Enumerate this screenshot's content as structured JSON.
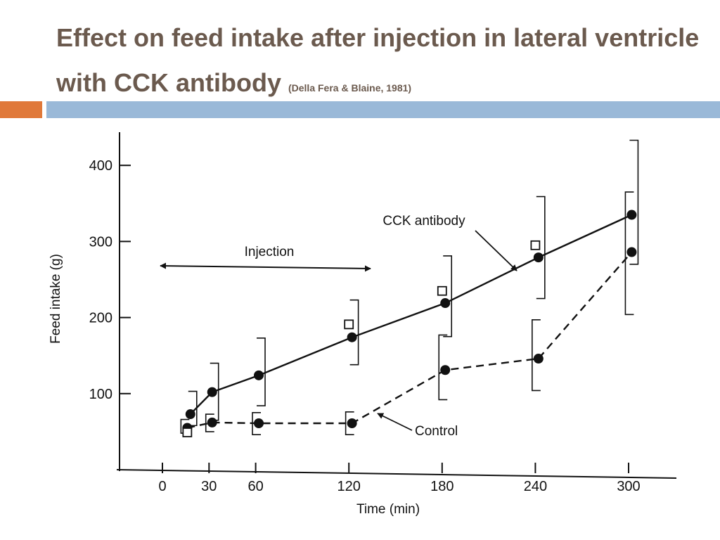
{
  "slide": {
    "title": "Effect on feed intake after injection in lateral ventricle with CCK antibody",
    "citation": "(Della Fera & Blaine, 1981)"
  },
  "colors": {
    "title": "#6b5a4e",
    "accent_orange": "#e0793a",
    "accent_blue": "#9ab9d8",
    "ink": "#111111"
  },
  "chart_data": {
    "type": "line",
    "title": "",
    "xlabel": "Time (min)",
    "ylabel": "Feed intake (g)",
    "x_ticks": [
      0,
      30,
      60,
      120,
      180,
      240,
      300
    ],
    "y_ticks": [
      100,
      200,
      300,
      400
    ],
    "xlim": [
      -20,
      330
    ],
    "ylim": [
      0,
      440
    ],
    "series": [
      {
        "name": "CCK antibody",
        "style": "solid",
        "x": [
          18,
          32,
          62,
          122,
          182,
          242,
          302
        ],
        "y": [
          73,
          102,
          124,
          174,
          219,
          279,
          335
        ],
        "err_low": [
          58,
          65,
          84,
          138,
          175,
          225,
          270
        ],
        "err_high": [
          103,
          140,
          173,
          223,
          281,
          359,
          433
        ]
      },
      {
        "name": "Control",
        "style": "dashed",
        "x": [
          16,
          32,
          62,
          122,
          182,
          242,
          302
        ],
        "y": [
          55,
          62,
          61,
          61,
          131,
          146,
          286
        ],
        "err_low": [
          48,
          50,
          46,
          46,
          92,
          104,
          204
        ],
        "err_high": [
          66,
          73,
          75,
          76,
          177,
          197,
          365
        ]
      }
    ],
    "open_markers": {
      "x": [
        16,
        120,
        180,
        240
      ],
      "y": [
        49,
        191,
        235,
        295
      ]
    },
    "annotations": [
      {
        "id": "injection",
        "text": "Injection"
      },
      {
        "id": "cck",
        "text": "CCK antibody"
      },
      {
        "id": "control",
        "text": "Control"
      }
    ]
  }
}
